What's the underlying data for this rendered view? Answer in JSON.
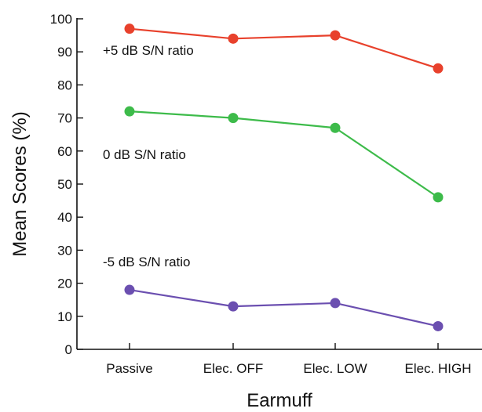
{
  "chart_data": {
    "type": "line",
    "title": "",
    "xlabel": "Earmuff",
    "ylabel": "Mean Scores (%)",
    "categories": [
      "Passive",
      "Elec. OFF",
      "Elec. LOW",
      "Elec. HIGH"
    ],
    "ylim": [
      0,
      100
    ],
    "yticks": [
      0,
      10,
      20,
      30,
      40,
      50,
      60,
      70,
      80,
      90,
      100
    ],
    "grid": false,
    "legend": "none",
    "series": [
      {
        "values": [
          97,
          94,
          95,
          85
        ],
        "color": "#e8412c"
      },
      {
        "values": [
          72,
          70,
          67,
          46
        ],
        "color": "#3dbb4a"
      },
      {
        "values": [
          18,
          13,
          14,
          7
        ],
        "color": "#6b4fb0"
      }
    ],
    "annotations": [
      {
        "text": "+5 dB S/N ratio",
        "y": 90.5
      },
      {
        "text": "0 dB S/N ratio",
        "y": 59
      },
      {
        "text": "-5 dB S/N ratio",
        "y": 26.5
      }
    ]
  }
}
